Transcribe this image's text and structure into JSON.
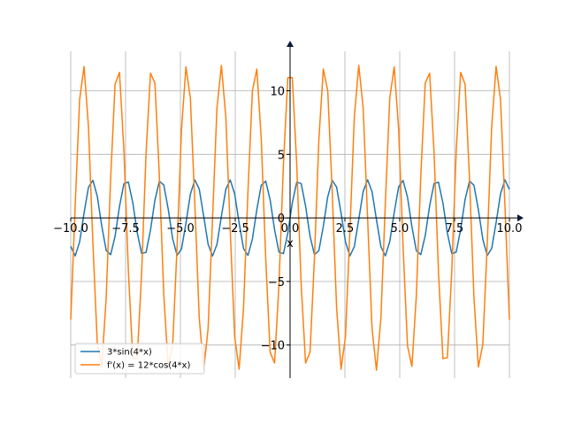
{
  "chart_data": {
    "type": "line",
    "xlabel": "x",
    "ylabel": "",
    "xlim": [
      -10.0,
      10.0
    ],
    "ylim": [
      -12.6,
      13.1
    ],
    "grid": true,
    "legend_position": "lower-left",
    "x_ticks": [
      -10.0,
      -7.5,
      -5.0,
      -2.5,
      0.0,
      2.5,
      5.0,
      7.5,
      10.0
    ],
    "x_tick_labels": [
      "−10.0",
      "−7.5",
      "−5.0",
      "−2.5",
      "0.0",
      "2.5",
      "5.0",
      "7.5",
      "10.0"
    ],
    "y_ticks": [
      -10,
      -5,
      0,
      5,
      10
    ],
    "y_tick_labels": [
      "−10",
      "−5",
      "0",
      "5",
      "10"
    ],
    "sample_range": [
      -10.0,
      10.0
    ],
    "sample_count": 100,
    "series": [
      {
        "name": "3*sin(4*x)",
        "function": "3*sin(4*x)",
        "color": "#1f77b4"
      },
      {
        "name": "f'(x) = 12*cos(4*x)",
        "function": "12*cos(4*x)",
        "color": "#ff7f0e"
      }
    ]
  }
}
